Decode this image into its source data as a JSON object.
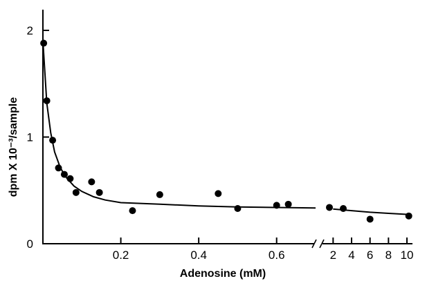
{
  "chart_data": {
    "type": "scatter",
    "title": "",
    "xlabel": "Adenosine (mM)",
    "ylabel": "dpm X 10⁻³/sample",
    "ylim": [
      0,
      2.15
    ],
    "y_ticks": [
      {
        "v": 0,
        "label": "0"
      },
      {
        "v": 1,
        "label": "1"
      },
      {
        "v": 2,
        "label": "2"
      }
    ],
    "x_axis_segments": [
      {
        "scale": "linear",
        "range": [
          0,
          0.7
        ],
        "ticks": [
          {
            "v": 0.2,
            "label": "0.2"
          },
          {
            "v": 0.4,
            "label": "0.4"
          },
          {
            "v": 0.6,
            "label": "0.6"
          }
        ]
      },
      {
        "scale": "linear",
        "range": [
          0.7,
          10
        ],
        "ticks": [
          {
            "v": 2,
            "label": "2"
          },
          {
            "v": 4,
            "label": "4"
          },
          {
            "v": 6,
            "label": "6"
          },
          {
            "v": 8,
            "label": "8"
          },
          {
            "v": 10,
            "label": "10"
          }
        ]
      }
    ],
    "x_axis_break": true,
    "grid": false,
    "series": [
      {
        "points": [
          {
            "x": 0.002,
            "y": 1.88
          },
          {
            "x": 0.01,
            "y": 1.34
          },
          {
            "x": 0.025,
            "y": 0.97
          },
          {
            "x": 0.04,
            "y": 0.71
          },
          {
            "x": 0.055,
            "y": 0.65
          },
          {
            "x": 0.07,
            "y": 0.61
          },
          {
            "x": 0.085,
            "y": 0.48
          },
          {
            "x": 0.125,
            "y": 0.58
          },
          {
            "x": 0.145,
            "y": 0.48
          },
          {
            "x": 0.23,
            "y": 0.31
          },
          {
            "x": 0.3,
            "y": 0.46
          },
          {
            "x": 0.45,
            "y": 0.47
          },
          {
            "x": 0.5,
            "y": 0.33
          },
          {
            "x": 0.6,
            "y": 0.36
          },
          {
            "x": 0.63,
            "y": 0.37
          },
          {
            "x": 1.6,
            "y": 0.34
          },
          {
            "x": 3.1,
            "y": 0.33
          },
          {
            "x": 6,
            "y": 0.23
          },
          {
            "x": 10.2,
            "y": 0.26
          }
        ]
      }
    ],
    "fit_curve": [
      {
        "x": 0.0,
        "y": 1.9
      },
      {
        "x": 0.01,
        "y": 1.32
      },
      {
        "x": 0.02,
        "y": 1.04
      },
      {
        "x": 0.03,
        "y": 0.86
      },
      {
        "x": 0.045,
        "y": 0.71
      },
      {
        "x": 0.06,
        "y": 0.62
      },
      {
        "x": 0.08,
        "y": 0.54
      },
      {
        "x": 0.1,
        "y": 0.49
      },
      {
        "x": 0.13,
        "y": 0.44
      },
      {
        "x": 0.16,
        "y": 0.41
      },
      {
        "x": 0.2,
        "y": 0.385
      },
      {
        "x": 0.3,
        "y": 0.37
      },
      {
        "x": 0.4,
        "y": 0.355
      },
      {
        "x": 0.5,
        "y": 0.345
      },
      {
        "x": 0.6,
        "y": 0.34
      },
      {
        "x": 0.7,
        "y": 0.335
      },
      {
        "x": 2,
        "y": 0.325
      },
      {
        "x": 4,
        "y": 0.31
      },
      {
        "x": 6,
        "y": 0.295
      },
      {
        "x": 8,
        "y": 0.285
      },
      {
        "x": 10,
        "y": 0.275
      }
    ]
  }
}
